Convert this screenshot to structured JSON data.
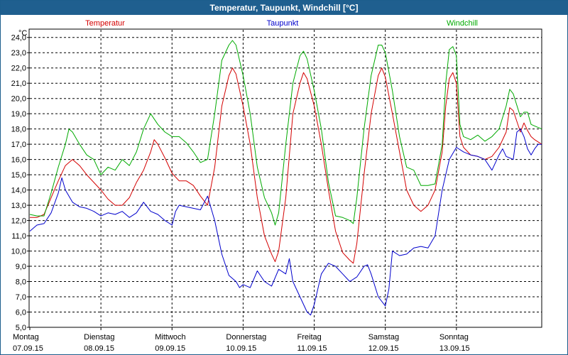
{
  "window": {
    "title": "Temperatur, Taupunkt, Windchill [°C]"
  },
  "chart_data": {
    "type": "line",
    "title": "Temperatur, Taupunkt, Windchill [°C]",
    "y_unit": "°C",
    "ylim": [
      5.0,
      24.5
    ],
    "grid": true,
    "y_ticks": [
      "24,0",
      "23,0",
      "22,0",
      "21,0",
      "20,0",
      "19,0",
      "18,0",
      "17,0",
      "16,0",
      "15,0",
      "14,0",
      "13,0",
      "12,0",
      "11,0",
      "10,0",
      "9,0",
      "8,0",
      "7,0",
      "6,0",
      "5,0"
    ],
    "x_ticks": [
      {
        "day": "Montag",
        "date": "07.09.15"
      },
      {
        "day": "Dienstag",
        "date": "08.09.15"
      },
      {
        "day": "Mittwoch",
        "date": "09.09.15"
      },
      {
        "day": "Donnerstag",
        "date": "10.09.15"
      },
      {
        "day": "Freitag",
        "date": "11.09.15"
      },
      {
        "day": "Samstag",
        "date": "12.09.15"
      },
      {
        "day": "Sonntag",
        "date": "13.09.15"
      }
    ],
    "xlim_days": [
      0,
      7.2
    ],
    "series": [
      {
        "name": "Temperatur",
        "color": "#d40000",
        "points": [
          [
            0.0,
            12.2
          ],
          [
            0.1,
            12.2
          ],
          [
            0.2,
            12.4
          ],
          [
            0.3,
            13.5
          ],
          [
            0.4,
            14.6
          ],
          [
            0.5,
            15.6
          ],
          [
            0.6,
            16.0
          ],
          [
            0.7,
            15.6
          ],
          [
            0.8,
            15.0
          ],
          [
            0.9,
            14.5
          ],
          [
            1.0,
            14.0
          ],
          [
            1.1,
            13.4
          ],
          [
            1.2,
            13.0
          ],
          [
            1.3,
            13.0
          ],
          [
            1.4,
            13.5
          ],
          [
            1.5,
            14.5
          ],
          [
            1.6,
            15.3
          ],
          [
            1.7,
            16.5
          ],
          [
            1.75,
            17.3
          ],
          [
            1.8,
            17.0
          ],
          [
            1.9,
            16.1
          ],
          [
            2.0,
            15.1
          ],
          [
            2.1,
            14.6
          ],
          [
            2.2,
            14.6
          ],
          [
            2.3,
            14.3
          ],
          [
            2.4,
            13.6
          ],
          [
            2.5,
            13.0
          ],
          [
            2.6,
            15.5
          ],
          [
            2.7,
            19.5
          ],
          [
            2.8,
            21.5
          ],
          [
            2.85,
            22.0
          ],
          [
            2.9,
            21.6
          ],
          [
            3.0,
            19.5
          ],
          [
            3.1,
            17.0
          ],
          [
            3.2,
            13.5
          ],
          [
            3.3,
            11.0
          ],
          [
            3.4,
            9.8
          ],
          [
            3.45,
            9.3
          ],
          [
            3.5,
            10.0
          ],
          [
            3.6,
            13.5
          ],
          [
            3.7,
            19.0
          ],
          [
            3.8,
            21.0
          ],
          [
            3.85,
            21.7
          ],
          [
            3.9,
            21.3
          ],
          [
            4.0,
            19.5
          ],
          [
            4.1,
            17.0
          ],
          [
            4.2,
            14.0
          ],
          [
            4.3,
            11.3
          ],
          [
            4.4,
            9.9
          ],
          [
            4.5,
            9.4
          ],
          [
            4.55,
            9.2
          ],
          [
            4.6,
            10.5
          ],
          [
            4.7,
            15.0
          ],
          [
            4.8,
            19.0
          ],
          [
            4.9,
            21.5
          ],
          [
            4.95,
            22.0
          ],
          [
            5.0,
            21.4
          ],
          [
            5.1,
            19.0
          ],
          [
            5.2,
            16.5
          ],
          [
            5.3,
            14.0
          ],
          [
            5.4,
            13.0
          ],
          [
            5.5,
            12.6
          ],
          [
            5.6,
            13.0
          ],
          [
            5.7,
            14.0
          ],
          [
            5.8,
            16.5
          ],
          [
            5.85,
            19.5
          ],
          [
            5.9,
            21.3
          ],
          [
            5.95,
            21.7
          ],
          [
            6.0,
            21.0
          ],
          [
            6.05,
            17.5
          ],
          [
            6.1,
            16.8
          ],
          [
            6.2,
            16.3
          ],
          [
            6.3,
            16.2
          ],
          [
            6.4,
            16.0
          ],
          [
            6.5,
            16.2
          ],
          [
            6.6,
            16.8
          ],
          [
            6.7,
            17.8
          ],
          [
            6.75,
            19.4
          ],
          [
            6.8,
            19.2
          ],
          [
            6.9,
            17.8
          ],
          [
            6.95,
            18.4
          ],
          [
            7.0,
            17.9
          ],
          [
            7.05,
            17.5
          ],
          [
            7.1,
            17.3
          ],
          [
            7.2,
            17.0
          ]
        ]
      },
      {
        "name": "Taupunkt",
        "color": "#0000cc",
        "points": [
          [
            0.0,
            11.3
          ],
          [
            0.1,
            11.7
          ],
          [
            0.2,
            11.8
          ],
          [
            0.3,
            12.5
          ],
          [
            0.4,
            13.8
          ],
          [
            0.45,
            14.8
          ],
          [
            0.5,
            14.0
          ],
          [
            0.6,
            13.2
          ],
          [
            0.7,
            12.9
          ],
          [
            0.8,
            12.8
          ],
          [
            0.9,
            12.6
          ],
          [
            1.0,
            12.3
          ],
          [
            1.1,
            12.5
          ],
          [
            1.2,
            12.4
          ],
          [
            1.3,
            12.6
          ],
          [
            1.4,
            12.2
          ],
          [
            1.5,
            12.5
          ],
          [
            1.6,
            13.2
          ],
          [
            1.7,
            12.6
          ],
          [
            1.8,
            12.4
          ],
          [
            1.9,
            12.0
          ],
          [
            2.0,
            11.7
          ],
          [
            2.05,
            12.6
          ],
          [
            2.1,
            13.0
          ],
          [
            2.2,
            12.9
          ],
          [
            2.3,
            12.8
          ],
          [
            2.4,
            12.7
          ],
          [
            2.5,
            13.6
          ],
          [
            2.6,
            12.0
          ],
          [
            2.7,
            9.8
          ],
          [
            2.8,
            8.4
          ],
          [
            2.9,
            8.0
          ],
          [
            2.95,
            7.6
          ],
          [
            3.0,
            7.8
          ],
          [
            3.1,
            7.6
          ],
          [
            3.2,
            8.7
          ],
          [
            3.3,
            8.0
          ],
          [
            3.4,
            7.7
          ],
          [
            3.5,
            8.8
          ],
          [
            3.6,
            8.5
          ],
          [
            3.65,
            9.5
          ],
          [
            3.7,
            8.0
          ],
          [
            3.8,
            7.0
          ],
          [
            3.9,
            6.0
          ],
          [
            3.95,
            5.8
          ],
          [
            4.0,
            6.5
          ],
          [
            4.1,
            8.5
          ],
          [
            4.2,
            9.2
          ],
          [
            4.3,
            9.0
          ],
          [
            4.4,
            8.5
          ],
          [
            4.5,
            8.0
          ],
          [
            4.6,
            8.3
          ],
          [
            4.7,
            9.0
          ],
          [
            4.75,
            9.1
          ],
          [
            4.8,
            8.5
          ],
          [
            4.9,
            7.0
          ],
          [
            5.0,
            6.4
          ],
          [
            5.05,
            7.5
          ],
          [
            5.1,
            10.0
          ],
          [
            5.2,
            9.7
          ],
          [
            5.3,
            9.8
          ],
          [
            5.4,
            10.2
          ],
          [
            5.5,
            10.3
          ],
          [
            5.6,
            10.2
          ],
          [
            5.7,
            11.0
          ],
          [
            5.8,
            14.0
          ],
          [
            5.9,
            16.0
          ],
          [
            6.0,
            16.8
          ],
          [
            6.1,
            16.5
          ],
          [
            6.2,
            16.3
          ],
          [
            6.3,
            16.2
          ],
          [
            6.4,
            16.0
          ],
          [
            6.5,
            15.3
          ],
          [
            6.6,
            16.3
          ],
          [
            6.65,
            16.7
          ],
          [
            6.7,
            16.2
          ],
          [
            6.8,
            16.0
          ],
          [
            6.85,
            17.8
          ],
          [
            6.9,
            18.0
          ],
          [
            6.95,
            17.5
          ],
          [
            7.0,
            16.7
          ],
          [
            7.05,
            16.3
          ],
          [
            7.1,
            16.7
          ],
          [
            7.15,
            17.0
          ],
          [
            7.2,
            17.0
          ]
        ]
      },
      {
        "name": "Windchill",
        "color": "#00aa00",
        "points": [
          [
            0.0,
            12.4
          ],
          [
            0.1,
            12.3
          ],
          [
            0.2,
            12.3
          ],
          [
            0.3,
            13.8
          ],
          [
            0.4,
            15.5
          ],
          [
            0.5,
            17.0
          ],
          [
            0.55,
            18.0
          ],
          [
            0.6,
            17.8
          ],
          [
            0.7,
            17.0
          ],
          [
            0.8,
            16.3
          ],
          [
            0.9,
            16.0
          ],
          [
            1.0,
            15.0
          ],
          [
            1.1,
            15.5
          ],
          [
            1.2,
            15.3
          ],
          [
            1.3,
            16.0
          ],
          [
            1.4,
            15.6
          ],
          [
            1.5,
            16.5
          ],
          [
            1.6,
            18.0
          ],
          [
            1.7,
            19.0
          ],
          [
            1.8,
            18.3
          ],
          [
            1.9,
            17.8
          ],
          [
            2.0,
            17.5
          ],
          [
            2.1,
            17.5
          ],
          [
            2.2,
            17.1
          ],
          [
            2.3,
            16.5
          ],
          [
            2.4,
            15.8
          ],
          [
            2.5,
            16.0
          ],
          [
            2.6,
            19.0
          ],
          [
            2.7,
            22.5
          ],
          [
            2.8,
            23.5
          ],
          [
            2.85,
            23.8
          ],
          [
            2.9,
            23.5
          ],
          [
            3.0,
            21.5
          ],
          [
            3.1,
            19.0
          ],
          [
            3.2,
            15.5
          ],
          [
            3.3,
            13.5
          ],
          [
            3.4,
            12.5
          ],
          [
            3.45,
            11.7
          ],
          [
            3.5,
            12.5
          ],
          [
            3.6,
            17.0
          ],
          [
            3.7,
            21.0
          ],
          [
            3.8,
            22.8
          ],
          [
            3.85,
            23.1
          ],
          [
            3.9,
            22.6
          ],
          [
            4.0,
            20.5
          ],
          [
            4.1,
            18.0
          ],
          [
            4.2,
            14.5
          ],
          [
            4.3,
            12.3
          ],
          [
            4.4,
            12.2
          ],
          [
            4.5,
            12.0
          ],
          [
            4.55,
            11.8
          ],
          [
            4.6,
            13.5
          ],
          [
            4.7,
            18.0
          ],
          [
            4.8,
            21.5
          ],
          [
            4.9,
            23.5
          ],
          [
            4.95,
            23.5
          ],
          [
            5.0,
            23.0
          ],
          [
            5.1,
            20.5
          ],
          [
            5.2,
            17.5
          ],
          [
            5.3,
            15.5
          ],
          [
            5.4,
            15.3
          ],
          [
            5.5,
            14.3
          ],
          [
            5.6,
            14.3
          ],
          [
            5.7,
            14.4
          ],
          [
            5.8,
            17.0
          ],
          [
            5.85,
            21.0
          ],
          [
            5.9,
            23.2
          ],
          [
            5.95,
            23.4
          ],
          [
            6.0,
            22.8
          ],
          [
            6.05,
            18.3
          ],
          [
            6.1,
            17.5
          ],
          [
            6.2,
            17.3
          ],
          [
            6.3,
            17.6
          ],
          [
            6.4,
            17.2
          ],
          [
            6.5,
            17.5
          ],
          [
            6.6,
            18.0
          ],
          [
            6.7,
            19.5
          ],
          [
            6.75,
            20.6
          ],
          [
            6.8,
            20.3
          ],
          [
            6.9,
            18.8
          ],
          [
            6.95,
            19.1
          ],
          [
            7.0,
            19.1
          ],
          [
            7.05,
            18.3
          ],
          [
            7.1,
            18.2
          ],
          [
            7.2,
            18.0
          ]
        ]
      }
    ]
  }
}
